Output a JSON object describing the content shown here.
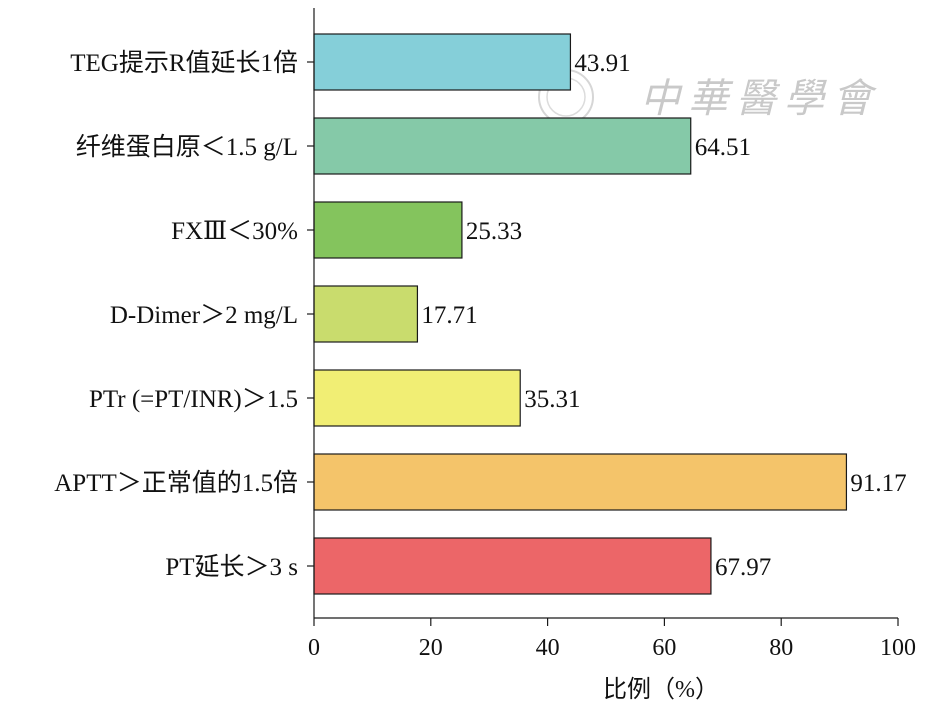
{
  "chart_data": {
    "type": "bar",
    "orientation": "horizontal",
    "categories": [
      "TEG提示R值延长1倍",
      "纤维蛋白原＜1.5 g/L",
      "FXⅢ＜30%",
      "D-Dimer＞2 mg/L",
      "PTr (=PT/INR)＞1.5",
      "APTT＞正常值的1.5倍",
      "PT延长＞3 s"
    ],
    "values": [
      43.91,
      64.51,
      25.33,
      17.71,
      35.31,
      91.17,
      67.97
    ],
    "value_labels": [
      "43.91",
      "64.51",
      "25.33",
      "17.71",
      "35.31",
      "91.17",
      "67.97"
    ],
    "colors": [
      "#85cfd9",
      "#85c9a8",
      "#84c45d",
      "#c9dc6d",
      "#f1ee74",
      "#f4c46a",
      "#ec6668"
    ],
    "xlabel": "比例（%）",
    "ylabel": "",
    "title": "",
    "xlim": [
      0,
      100
    ],
    "xticks": [
      "0",
      "20",
      "40",
      "60",
      "80",
      "100"
    ],
    "grid": false,
    "watermark": "中華醫學會"
  }
}
